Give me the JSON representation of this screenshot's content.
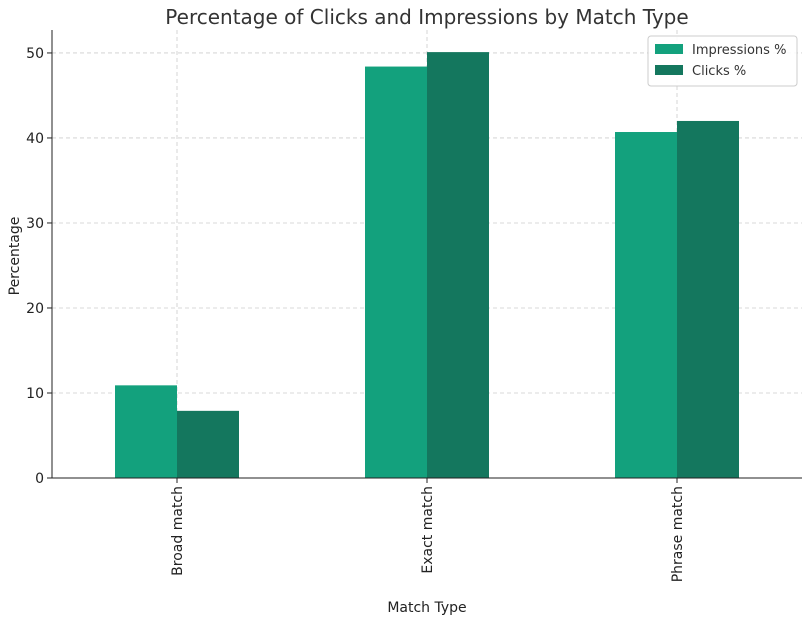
{
  "chart_data": {
    "type": "bar",
    "title": "Percentage of Clicks and Impressions by Match Type",
    "xlabel": "Match Type",
    "ylabel": "Percentage",
    "categories": [
      "Broad match",
      "Exact match",
      "Phrase match"
    ],
    "series": [
      {
        "name": "Impressions %",
        "color": "#13a17d",
        "values": [
          10.9,
          48.4,
          40.7
        ]
      },
      {
        "name": "Clicks %",
        "color": "#14775e",
        "values": [
          7.9,
          50.1,
          42.0
        ]
      }
    ],
    "ylim": [
      0,
      52.7
    ],
    "yticks": [
      0,
      10,
      20,
      30,
      40,
      50
    ],
    "grid": true,
    "legend_position": "top-right"
  }
}
